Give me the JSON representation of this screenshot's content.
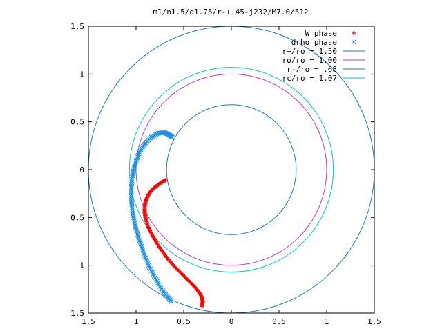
{
  "chart_data": {
    "type": "scatter",
    "title": "m1/n1.5/q1.75/r-+.45-j232/M7.0/512",
    "xlabel": "",
    "ylabel": "",
    "xlim": [
      -1.5,
      1.5
    ],
    "ylim": [
      -1.5,
      1.5
    ],
    "grid": false,
    "legend_position": "top-right",
    "x_ticks": [
      {
        "value": -1.5,
        "label": "1.5"
      },
      {
        "value": -1,
        "label": "1"
      },
      {
        "value": -0.5,
        "label": "0.5"
      },
      {
        "value": 0,
        "label": "0"
      },
      {
        "value": 0.5,
        "label": "0.5"
      },
      {
        "value": 1,
        "label": "1"
      },
      {
        "value": 1.5,
        "label": "1.5"
      }
    ],
    "y_ticks": [
      {
        "value": 1.5,
        "label": "1.5"
      },
      {
        "value": 1,
        "label": "1"
      },
      {
        "value": 0.5,
        "label": "0.5"
      },
      {
        "value": 0,
        "label": "0"
      },
      {
        "value": -0.5,
        "label": "0.5"
      },
      {
        "value": -1,
        "label": "1"
      },
      {
        "value": -1.5,
        "label": "1.5"
      }
    ],
    "series": [
      {
        "name": "W phase",
        "marker": "+",
        "color": "#ff0000",
        "points": [
          [
            -0.69,
            -0.11
          ],
          [
            -0.73,
            -0.13
          ],
          [
            -0.77,
            -0.16
          ],
          [
            -0.81,
            -0.19
          ],
          [
            -0.85,
            -0.23
          ],
          [
            -0.88,
            -0.28
          ],
          [
            -0.9,
            -0.33
          ],
          [
            -0.91,
            -0.39
          ],
          [
            -0.91,
            -0.45
          ],
          [
            -0.9,
            -0.51
          ],
          [
            -0.88,
            -0.58
          ],
          [
            -0.85,
            -0.65
          ],
          [
            -0.81,
            -0.72
          ],
          [
            -0.77,
            -0.79
          ],
          [
            -0.72,
            -0.86
          ],
          [
            -0.67,
            -0.93
          ],
          [
            -0.61,
            -1.0
          ],
          [
            -0.55,
            -1.06
          ],
          [
            -0.49,
            -1.12
          ],
          [
            -0.43,
            -1.18
          ],
          [
            -0.38,
            -1.23
          ],
          [
            -0.34,
            -1.28
          ],
          [
            -0.31,
            -1.33
          ],
          [
            -0.3,
            -1.38
          ],
          [
            -0.31,
            -1.43
          ]
        ]
      },
      {
        "name": "drho phase",
        "marker": "x",
        "color": "#1e90e0",
        "points": [
          [
            -0.62,
            0.34
          ],
          [
            -0.66,
            0.37
          ],
          [
            -0.71,
            0.39
          ],
          [
            -0.77,
            0.38
          ],
          [
            -0.84,
            0.34
          ],
          [
            -0.9,
            0.28
          ],
          [
            -0.95,
            0.21
          ],
          [
            -0.99,
            0.12
          ],
          [
            -1.02,
            0.02
          ],
          [
            -1.04,
            -0.08
          ],
          [
            -1.05,
            -0.19
          ],
          [
            -1.05,
            -0.3
          ],
          [
            -1.04,
            -0.42
          ],
          [
            -1.02,
            -0.54
          ],
          [
            -0.99,
            -0.66
          ],
          [
            -0.95,
            -0.78
          ],
          [
            -0.91,
            -0.9
          ],
          [
            -0.86,
            -1.02
          ],
          [
            -0.8,
            -1.13
          ],
          [
            -0.74,
            -1.24
          ],
          [
            -0.68,
            -1.32
          ],
          [
            -0.63,
            -1.38
          ]
        ]
      },
      {
        "name": "r+/ro = 1.50",
        "type": "circle",
        "radius": 1.5,
        "color": "#1f77b4"
      },
      {
        "name": "ro/ro = 1.00",
        "type": "circle",
        "radius": 1.0,
        "color": "#b03cc0"
      },
      {
        "name": "r-/ro = .68",
        "type": "circle",
        "radius": 0.68,
        "color": "#1f77b4"
      },
      {
        "name": "rc/ro = 1.07",
        "type": "circle",
        "radius": 1.07,
        "color": "#00c8c8"
      }
    ]
  }
}
